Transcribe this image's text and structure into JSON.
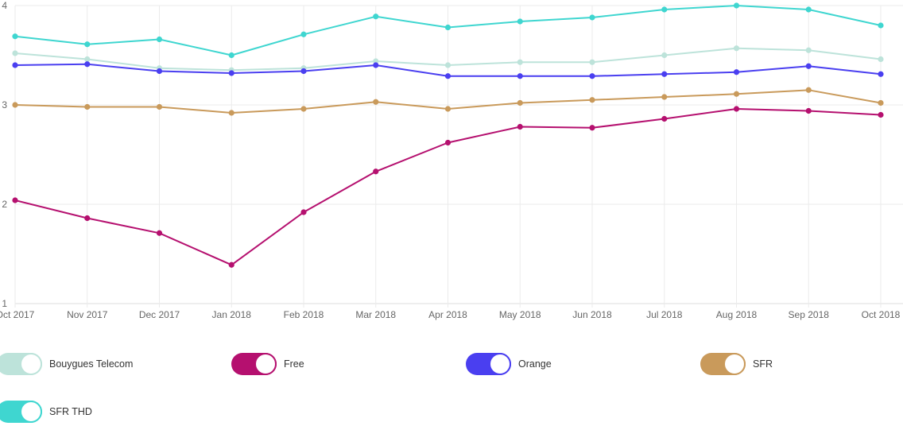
{
  "chart_data": {
    "type": "line",
    "title": "",
    "xlabel": "",
    "ylabel": "",
    "ylim": [
      1,
      4
    ],
    "yticks": [
      "1",
      "2",
      "3",
      "4"
    ],
    "grid": true,
    "legend_position": "bottom",
    "categories": [
      "Oct 2017",
      "Nov 2017",
      "Dec 2017",
      "Jan 2018",
      "Feb 2018",
      "Mar 2018",
      "Apr 2018",
      "May 2018",
      "Jun 2018",
      "Jul 2018",
      "Aug 2018",
      "Sep 2018",
      "Oct 2018"
    ],
    "series": [
      {
        "name": "Bouygues Telecom",
        "color": "#bde3da",
        "values": [
          3.52,
          3.46,
          3.37,
          3.35,
          3.37,
          3.44,
          3.4,
          3.43,
          3.43,
          3.5,
          3.57,
          3.55,
          3.46
        ]
      },
      {
        "name": "Free",
        "color": "#b5106f",
        "values": [
          2.04,
          1.86,
          1.71,
          1.39,
          1.92,
          2.33,
          2.62,
          2.78,
          2.77,
          2.86,
          2.96,
          2.94,
          2.9
        ]
      },
      {
        "name": "Orange",
        "color": "#4a3ff0",
        "values": [
          3.4,
          3.41,
          3.34,
          3.32,
          3.34,
          3.4,
          3.29,
          3.29,
          3.29,
          3.31,
          3.33,
          3.39,
          3.31
        ]
      },
      {
        "name": "SFR",
        "color": "#c99a5b",
        "values": [
          3.0,
          2.98,
          2.98,
          2.92,
          2.96,
          3.03,
          2.96,
          3.02,
          3.05,
          3.08,
          3.11,
          3.15,
          3.02
        ]
      },
      {
        "name": "SFR THD",
        "color": "#3fd6d0",
        "values": [
          3.69,
          3.61,
          3.66,
          3.5,
          3.71,
          3.89,
          3.78,
          3.84,
          3.88,
          3.96,
          4.0,
          3.96,
          3.8
        ]
      }
    ]
  },
  "legend": {
    "items": [
      {
        "label": "Bouygues Telecom",
        "color": "#bde3da",
        "enabled": true
      },
      {
        "label": "Free",
        "color": "#b5106f",
        "enabled": true
      },
      {
        "label": "Orange",
        "color": "#4a3ff0",
        "enabled": true
      },
      {
        "label": "SFR",
        "color": "#c99a5b",
        "enabled": true
      },
      {
        "label": "SFR THD",
        "color": "#3fd6d0",
        "enabled": true
      }
    ]
  },
  "colors": {
    "grid": "#ebebeb",
    "axis": "#dddddd",
    "tick_text": "#666666",
    "legend_text": "#333333"
  }
}
